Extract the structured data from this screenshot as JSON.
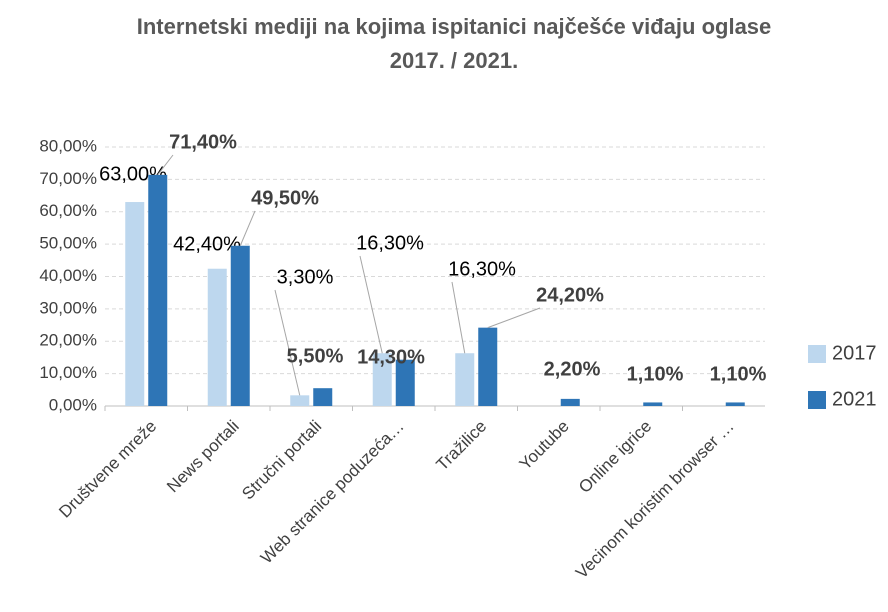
{
  "chart_data": {
    "type": "bar",
    "title": "Internetski mediji na kojima ispitanici najčešće viđaju oglase",
    "subtitle": "2017. / 2021.",
    "categories": [
      "Društvene mreže",
      "News portali",
      "Stručni portali",
      "Web stranice poduzeća…",
      "Tražilice",
      "Youtube",
      "Online igrice",
      "Vecinom koristim browser …"
    ],
    "series": [
      {
        "name": "2017",
        "color": "#bdd7ee",
        "values": [
          63,
          42.4,
          3.3,
          16.3,
          16.3,
          null,
          null,
          null
        ],
        "value_labels": [
          "63,00%",
          "42,40%",
          "3,30%",
          "16,30%",
          "16,30%",
          null,
          null,
          null
        ]
      },
      {
        "name": "2021",
        "color": "#2e75b6",
        "values": [
          71.4,
          49.5,
          5.5,
          14.3,
          24.2,
          2.2,
          1.1,
          1.1
        ],
        "value_labels": [
          "71,40%",
          "49,50%",
          "5,50%",
          "14,30%",
          "24,20%",
          "2,20%",
          "1,10%",
          "1,10%"
        ]
      }
    ],
    "ylim": [
      0,
      80
    ],
    "yticks": [
      {
        "value": 0,
        "label": "0,00%"
      },
      {
        "value": 10,
        "label": "10,00%"
      },
      {
        "value": 20,
        "label": "20,00%"
      },
      {
        "value": 30,
        "label": "30,00%"
      },
      {
        "value": 40,
        "label": "40,00%"
      },
      {
        "value": 50,
        "label": "50,00%"
      },
      {
        "value": 60,
        "label": "60,00%"
      },
      {
        "value": 70,
        "label": "70,00%"
      },
      {
        "value": 80,
        "label": "80,00%"
      }
    ],
    "grid": true,
    "legend": "right"
  }
}
